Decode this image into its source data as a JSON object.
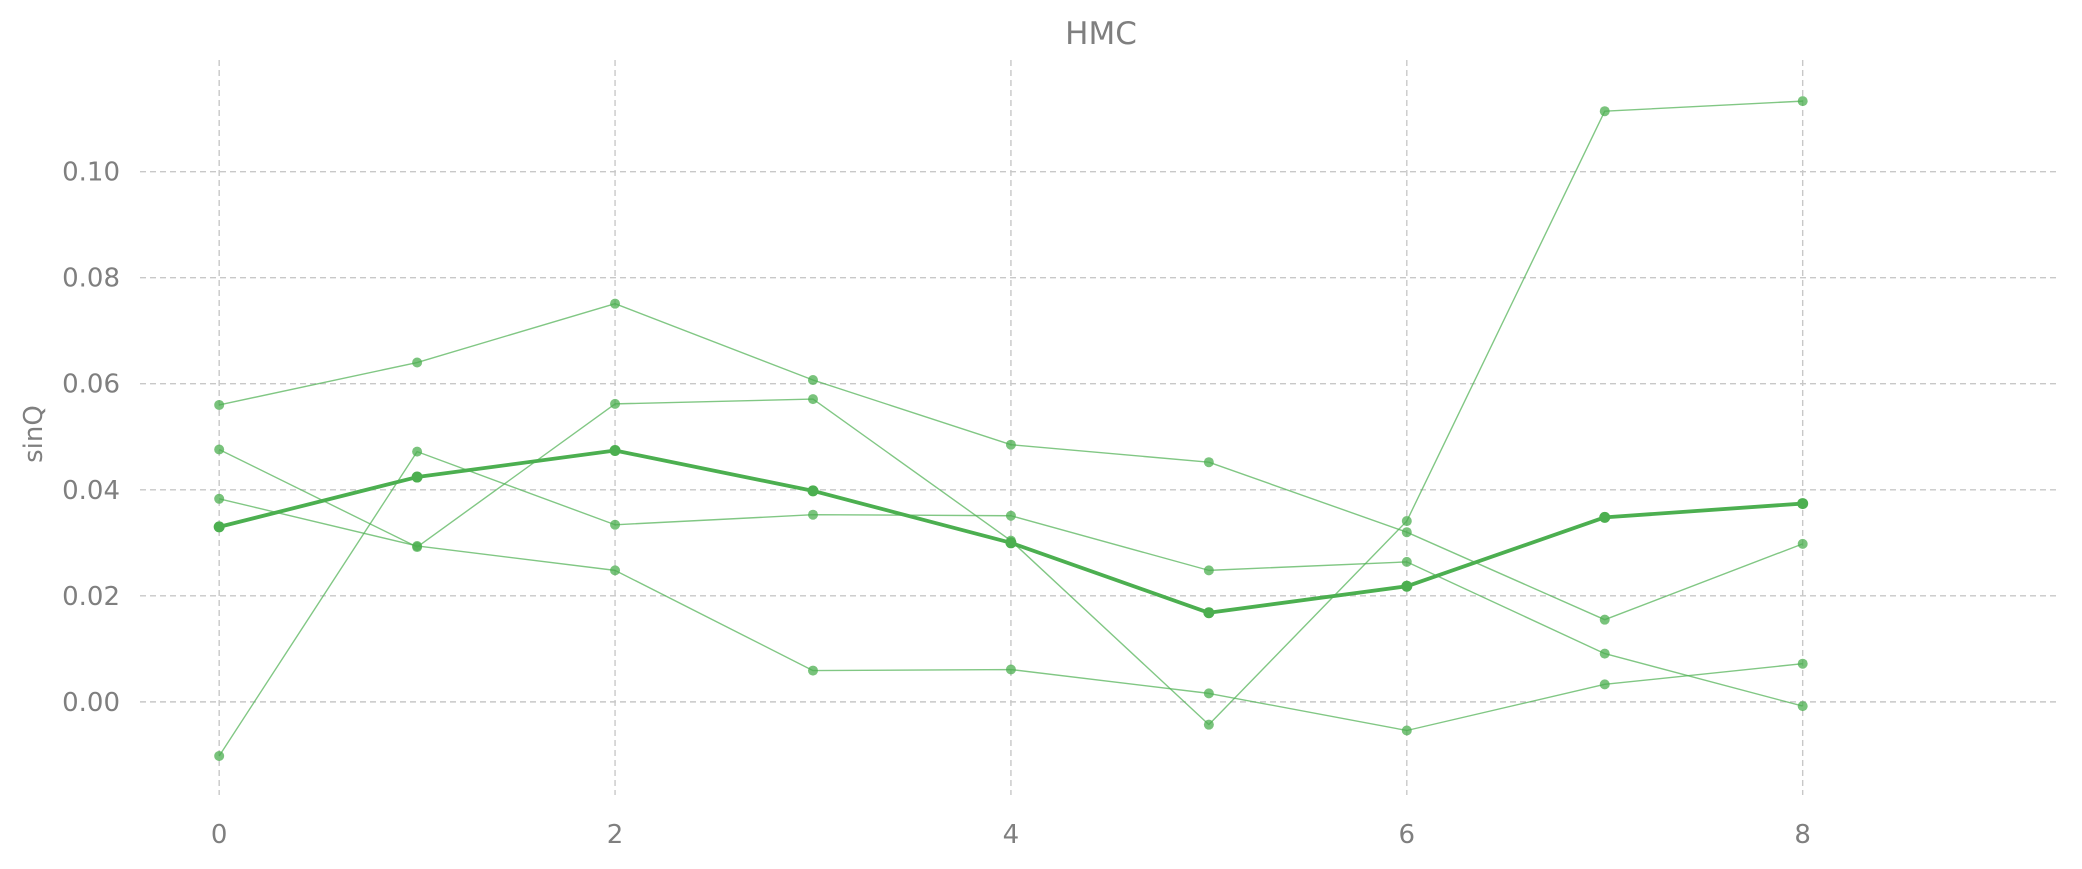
{
  "chart_data": {
    "type": "line",
    "title": "HMC",
    "xlabel": "",
    "ylabel": "sinQ",
    "xlim": [
      -0.4,
      9.3
    ],
    "ylim": [
      -0.017,
      0.122
    ],
    "x": [
      0,
      1,
      2,
      3,
      4,
      5,
      6,
      7,
      8
    ],
    "x_ticks": [
      0,
      2,
      4,
      6,
      8
    ],
    "x_tick_labels": [
      "0",
      "2",
      "4",
      "6",
      "8"
    ],
    "y_ticks": [
      0.0,
      0.02,
      0.04,
      0.06,
      0.08,
      0.1
    ],
    "y_tick_labels": [
      "0.00",
      "0.02",
      "0.04",
      "0.06",
      "0.08",
      "0.10"
    ],
    "grid": true,
    "legend": "none",
    "colors": {
      "line": "#4caf50",
      "text": "#7f7f7f",
      "grid": "#c8c8c8"
    },
    "series": [
      {
        "values": [
          0.056,
          0.064,
          0.0751,
          0.0607,
          0.0485,
          0.0452,
          0.032,
          0.0155,
          0.0298
        ],
        "emphasis": false
      },
      {
        "values": [
          0.0476,
          0.0292,
          0.0562,
          0.0571,
          0.0304,
          -0.0043,
          0.0341,
          0.1114,
          0.1133
        ],
        "emphasis": false
      },
      {
        "values": [
          0.0383,
          0.0294,
          0.0248,
          0.0059,
          0.0061,
          0.0016,
          -0.0054,
          0.0033,
          0.0072
        ],
        "emphasis": false
      },
      {
        "values": [
          -0.0102,
          0.0472,
          0.0334,
          0.0353,
          0.0351,
          0.0248,
          0.0264,
          0.0091,
          -0.0008
        ],
        "emphasis": false
      },
      {
        "values": [
          0.033,
          0.0424,
          0.0474,
          0.0398,
          0.03,
          0.0168,
          0.0218,
          0.0348,
          0.0374
        ],
        "emphasis": true
      }
    ]
  }
}
